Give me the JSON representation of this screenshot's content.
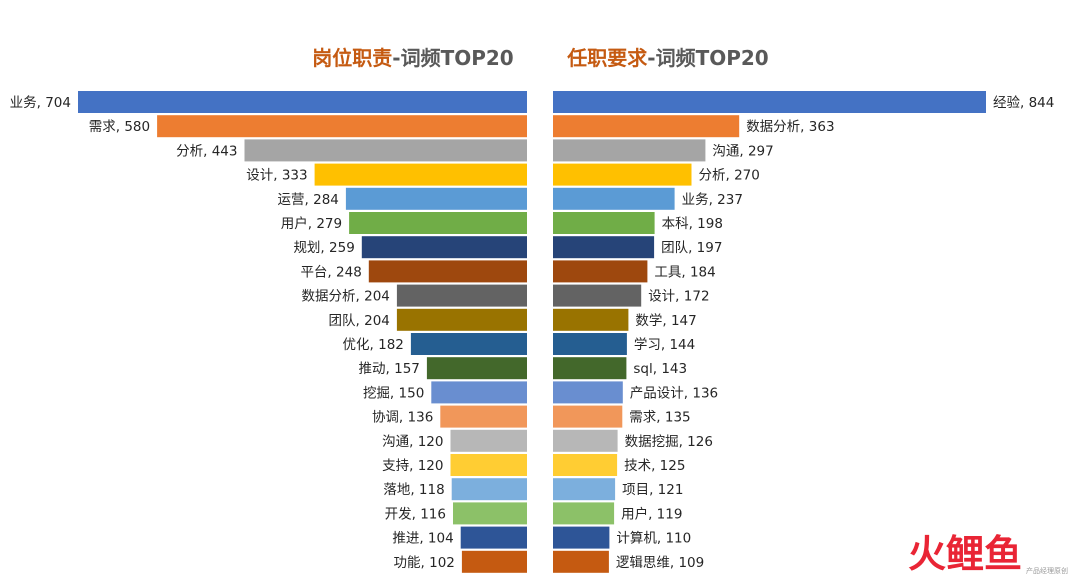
{
  "chart_data": [
    {
      "type": "bar",
      "orientation": "horizontal",
      "direction": "right-to-left",
      "title_highlight": "岗位职责",
      "title_rest": "-词频TOP20",
      "categories": [
        "业务",
        "需求",
        "分析",
        "设计",
        "运营",
        "用户",
        "规划",
        "平台",
        "数据分析",
        "团队",
        "优化",
        "推动",
        "挖掘",
        "协调",
        "沟通",
        "支持",
        "落地",
        "开发",
        "推进",
        "功能"
      ],
      "values": [
        704,
        580,
        443,
        333,
        284,
        279,
        259,
        248,
        204,
        204,
        182,
        157,
        150,
        136,
        120,
        120,
        118,
        116,
        104,
        102
      ],
      "xlim": [
        0,
        704
      ]
    },
    {
      "type": "bar",
      "orientation": "horizontal",
      "direction": "left-to-right",
      "title_highlight": "任职要求",
      "title_rest": "-词频TOP20",
      "categories": [
        "经验",
        "数据分析",
        "沟通",
        "分析",
        "业务",
        "本科",
        "团队",
        "工具",
        "设计",
        "数学",
        "学习",
        "sql",
        "产品设计",
        "需求",
        "数据挖掘",
        "技术",
        "项目",
        "用户",
        "计算机",
        "逻辑思维"
      ],
      "values": [
        844,
        363,
        297,
        270,
        237,
        198,
        197,
        184,
        172,
        147,
        144,
        143,
        136,
        135,
        126,
        125,
        121,
        119,
        110,
        109
      ],
      "xlim": [
        0,
        844
      ]
    }
  ],
  "palette": [
    "#4472c4",
    "#ed7d31",
    "#a5a5a5",
    "#ffc000",
    "#5b9bd5",
    "#70ad47",
    "#264478",
    "#9e480e",
    "#636363",
    "#997300",
    "#255e91",
    "#43682b",
    "#698ed0",
    "#f1975a",
    "#b7b7b7",
    "#ffcd33",
    "#7cafdd",
    "#8cc168",
    "#2e5597",
    "#c55a11"
  ],
  "watermark": {
    "text": "火鲤鱼",
    "sub": "产品经理原创"
  }
}
